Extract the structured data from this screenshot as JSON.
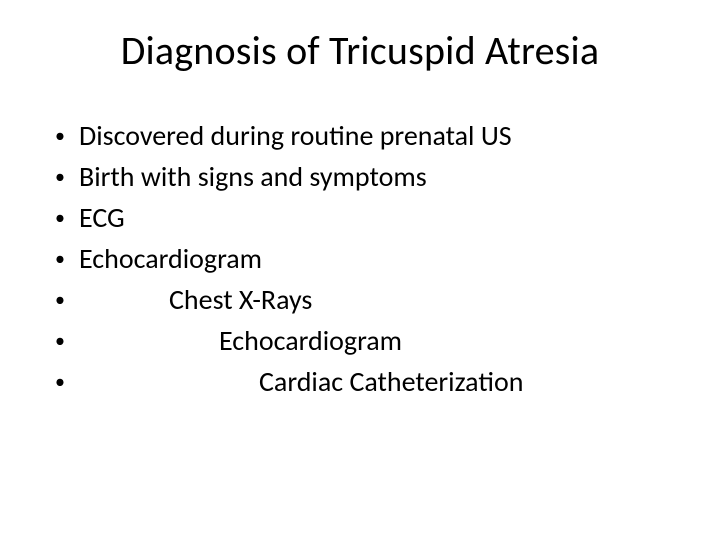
{
  "slide": {
    "title": "Diagnosis of Tricuspid Atresia",
    "title_fontsize": 40,
    "body_fontsize": 28,
    "background_color": "#ffffff",
    "text_color": "#000000",
    "bullet_char": "•",
    "items": [
      {
        "text": "Discovered during routine prenatal US",
        "indent": 0
      },
      {
        "text": "Birth with signs and symptoms",
        "indent": 0
      },
      {
        "text": "ECG",
        "indent": 0
      },
      {
        "text": "Echocardiogram",
        "indent": 0
      },
      {
        "text": "Chest X-Rays",
        "indent": 1
      },
      {
        "text": "Echocardiogram",
        "indent": 2
      },
      {
        "text": "Cardiac Catheterization",
        "indent": 3
      }
    ]
  }
}
